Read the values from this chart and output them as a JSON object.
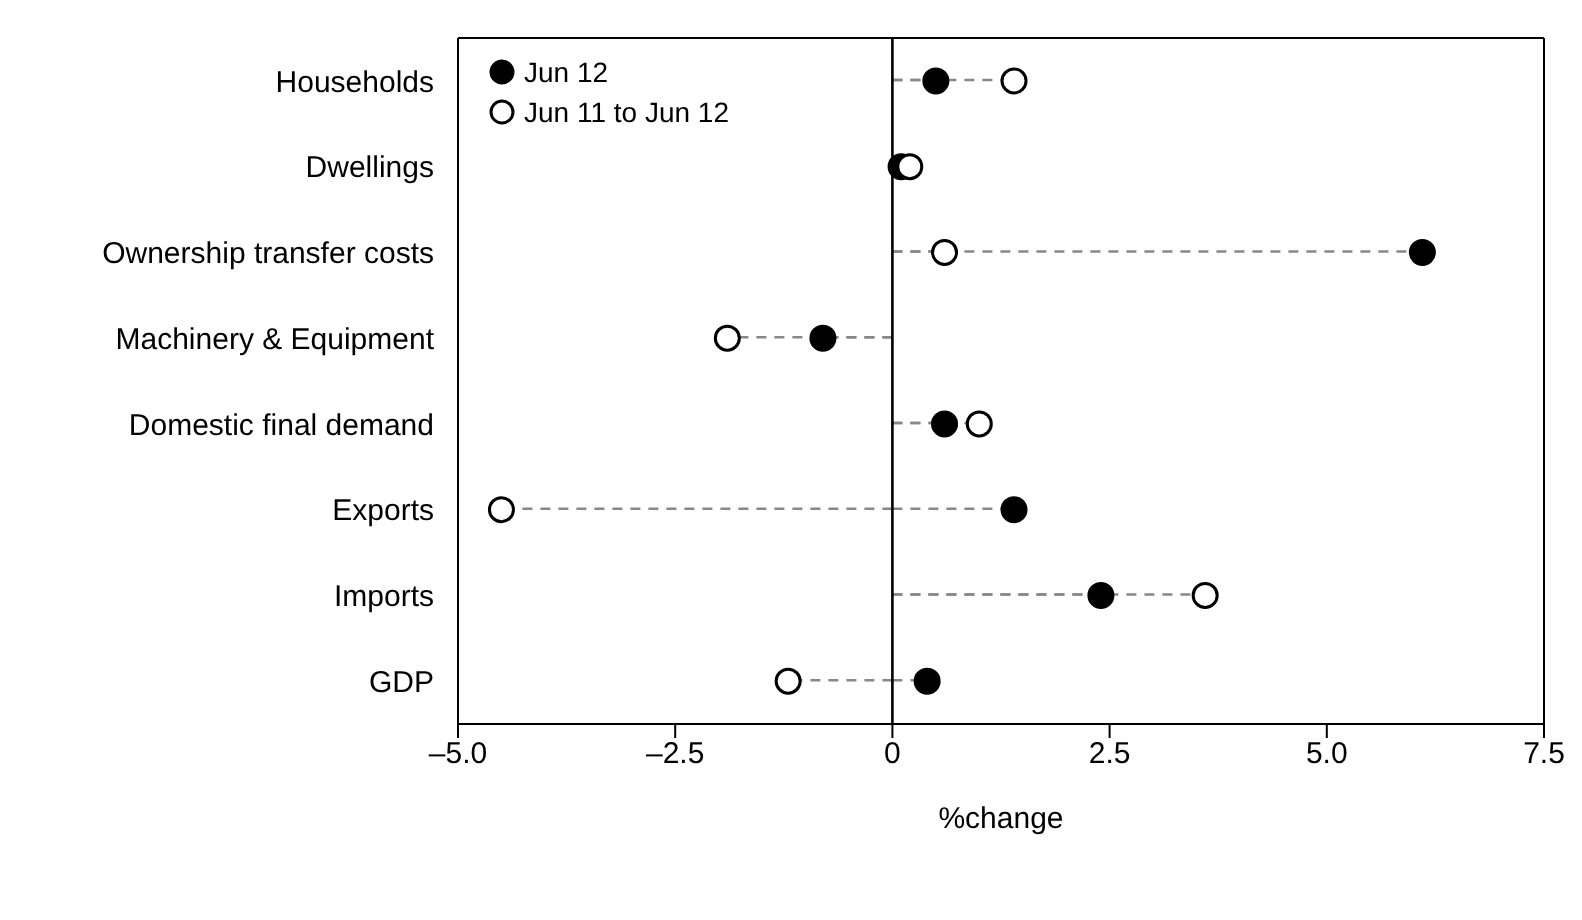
{
  "chart_data": {
    "type": "lollipop",
    "orientation": "horizontal",
    "xlabel": "%change",
    "categories": [
      "Households",
      "Dwellings",
      "Ownership transfer costs",
      "Machinery & Equipment",
      "Domestic final demand",
      "Exports",
      "Imports",
      "GDP"
    ],
    "series": [
      {
        "name": "Jun 12",
        "color": "#000000",
        "values": [
          0.5,
          0.1,
          6.1,
          -0.8,
          0.6,
          1.4,
          2.4,
          0.4
        ]
      },
      {
        "name": "Jun 11 to Jun 12",
        "color": "#ffffff",
        "values": [
          1.4,
          0.2,
          0.6,
          -1.9,
          1.0,
          -4.5,
          3.6,
          -1.2
        ]
      }
    ],
    "xlim": [
      -5,
      7.5
    ],
    "xticks": [
      {
        "value": -5,
        "label": "–5.0"
      },
      {
        "value": -2.5,
        "label": "–2.5"
      },
      0,
      2.5,
      {
        "value": 5,
        "label": "5.0"
      },
      7.5
    ],
    "ref_lines": [
      {
        "axis": "x",
        "value": 0,
        "color": "#000000"
      }
    ],
    "legend": "top left",
    "marker": "circle",
    "line_style": "dashed"
  }
}
